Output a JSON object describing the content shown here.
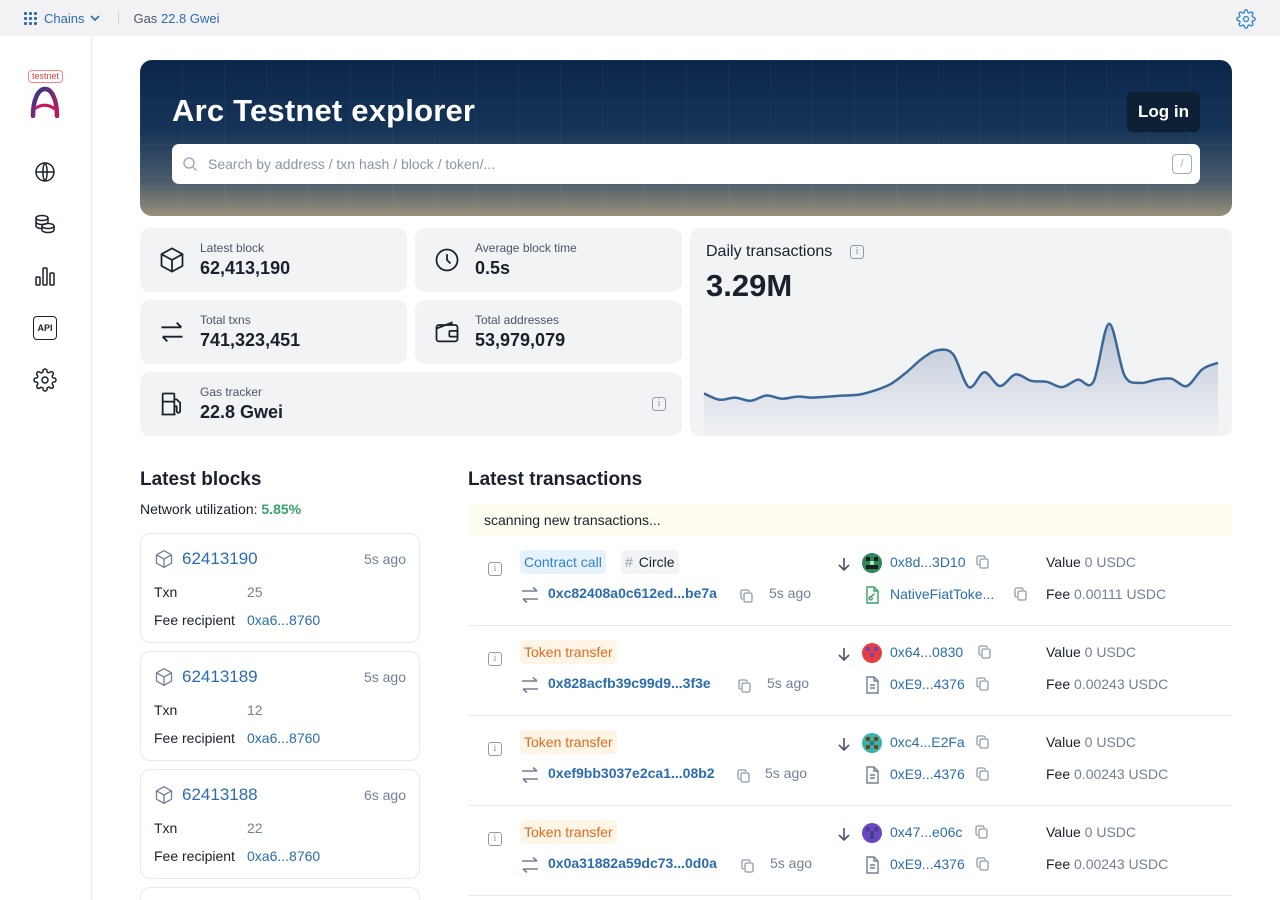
{
  "topbar": {
    "chains_label": "Chains",
    "gas_label": "Gas",
    "gas_value": "22.8 Gwei"
  },
  "sidebar": {
    "badge": "testnet",
    "api_label": "API"
  },
  "hero": {
    "title": "Arc Testnet explorer",
    "login_label": "Log in",
    "search_placeholder": "Search by address / txn hash / block / token/...",
    "search_shortcut": "/"
  },
  "stats": {
    "latest_block": {
      "label": "Latest block",
      "value": "62,413,190"
    },
    "avg_block_time": {
      "label": "Average block time",
      "value": "0.5s"
    },
    "total_txns": {
      "label": "Total txns",
      "value": "741,323,451"
    },
    "total_addresses": {
      "label": "Total addresses",
      "value": "53,979,079"
    },
    "gas_tracker": {
      "label": "Gas tracker",
      "value": "22.8 Gwei"
    }
  },
  "daily_tx": {
    "title": "Daily transactions",
    "value": "3.29M"
  },
  "chart_data": {
    "type": "area",
    "title": "Daily transactions",
    "values": [
      2.9,
      2.3,
      2.5,
      2.2,
      2.7,
      2.4,
      2.6,
      2.5,
      2.6,
      2.7,
      2.8,
      3.2,
      3.8,
      4.9,
      6.2,
      7.0,
      6.6,
      3.5,
      4.9,
      3.6,
      4.7,
      4.1,
      4.0,
      3.5,
      4.2,
      4.0,
      9.5,
      4.6,
      3.9,
      4.2,
      4.3,
      3.6,
      5.2,
      5.8
    ],
    "ylim": [
      0,
      11
    ],
    "grid": false,
    "color": "#3b6799"
  },
  "latest_blocks": {
    "title": "Latest blocks",
    "util_label": "Network utilization:",
    "util_value": "5.85%",
    "txn_label": "Txn",
    "fee_label": "Fee recipient",
    "items": [
      {
        "number": "62413190",
        "age": "5s ago",
        "txn": "25",
        "fee_recipient": "0xa6...8760"
      },
      {
        "number": "62413189",
        "age": "5s ago",
        "txn": "12",
        "fee_recipient": "0xa6...8760"
      },
      {
        "number": "62413188",
        "age": "6s ago",
        "txn": "22",
        "fee_recipient": "0xa6...8760"
      }
    ]
  },
  "latest_txs": {
    "title": "Latest transactions",
    "scanning": "scanning new transactions...",
    "value_label": "Value",
    "fee_label": "Fee",
    "items": [
      {
        "type": "Contract call",
        "method": "Circle",
        "hash": "0xc82408a0c612ed...be7a",
        "age": "5s ago",
        "from": "0x8d...3D10",
        "to": "NativeFiatToke...",
        "value": "0",
        "fee": "0.00111",
        "currency": "USDC"
      },
      {
        "type": "Token transfer",
        "method": "",
        "hash": "0x828acfb39c99d9...3f3e",
        "age": "5s ago",
        "from": "0x64...0830",
        "to": "0xE9...4376",
        "value": "0",
        "fee": "0.00243",
        "currency": "USDC"
      },
      {
        "type": "Token transfer",
        "method": "",
        "hash": "0xef9bb3037e2ca1...08b2",
        "age": "5s ago",
        "from": "0xc4...E2Fa",
        "to": "0xE9...4376",
        "value": "0",
        "fee": "0.00243",
        "currency": "USDC"
      },
      {
        "type": "Token transfer",
        "method": "",
        "hash": "0x0a31882a59dc73...0d0a",
        "age": "5s ago",
        "from": "0x47...e06c",
        "to": "0xE9...4376",
        "value": "0",
        "fee": "0.00243",
        "currency": "USDC"
      }
    ]
  }
}
